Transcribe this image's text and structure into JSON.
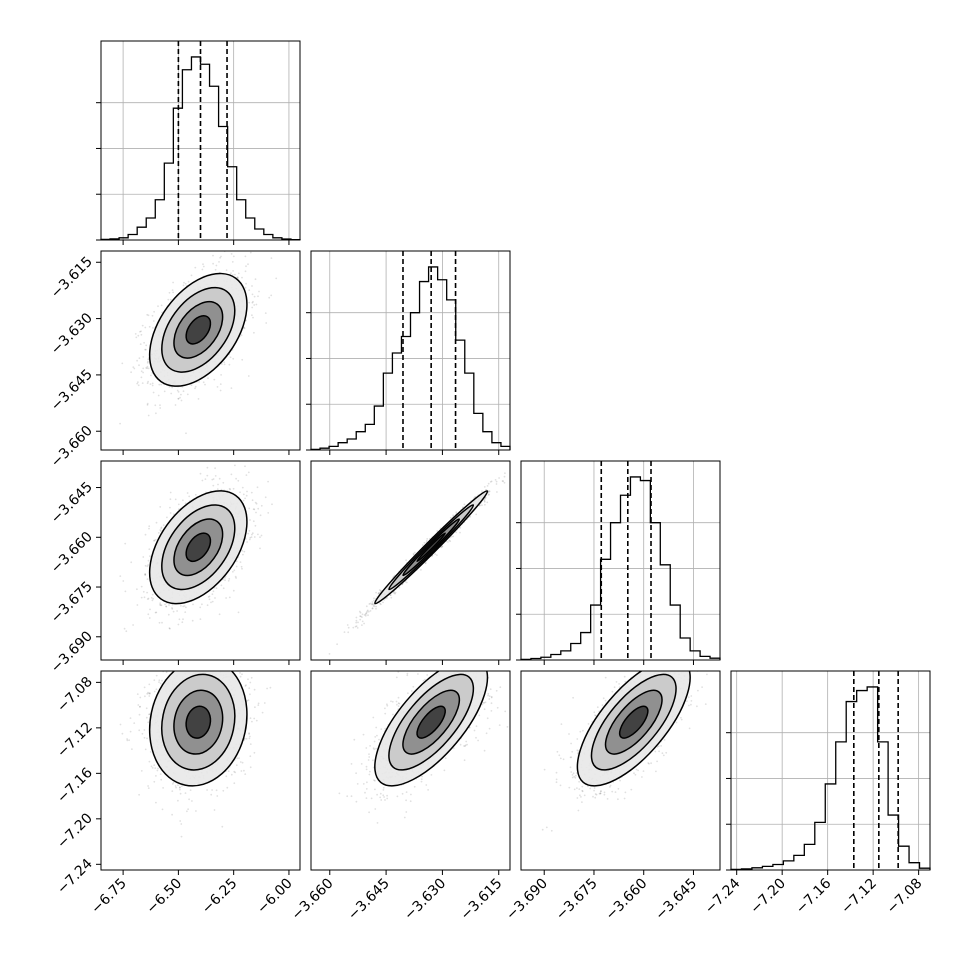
{
  "chart_data": {
    "type": "corner",
    "parameters": [
      {
        "id": "p1",
        "range": [
          -6.85,
          -5.95
        ],
        "ticks": [
          -6.75,
          -6.5,
          -6.25,
          -6.0
        ],
        "tick_labels": [
          "−6.75",
          "−6.50",
          "−6.25",
          "−6.00"
        ],
        "hist_edges_range": [
          -6.85,
          -5.95
        ],
        "hist": [
          0.003,
          0.006,
          0.012,
          0.03,
          0.07,
          0.12,
          0.22,
          0.42,
          0.72,
          0.93,
          1.0,
          0.96,
          0.84,
          0.62,
          0.4,
          0.22,
          0.12,
          0.06,
          0.03,
          0.012,
          0.005,
          0.002
        ],
        "quantiles": [
          -6.5,
          -6.4,
          -6.28
        ]
      },
      {
        "id": "p2",
        "range": [
          -3.665,
          -3.612
        ],
        "ticks": [
          -3.66,
          -3.645,
          -3.63,
          -3.615
        ],
        "tick_labels": [
          "−3.660",
          "−3.645",
          "−3.630",
          "−3.615"
        ],
        "hist_edges_range": [
          -3.665,
          -3.612
        ],
        "hist": [
          0.003,
          0.01,
          0.02,
          0.04,
          0.06,
          0.1,
          0.14,
          0.24,
          0.42,
          0.53,
          0.62,
          0.75,
          0.92,
          1.0,
          0.93,
          0.82,
          0.6,
          0.42,
          0.2,
          0.1,
          0.04,
          0.02
        ],
        "quantiles": [
          -3.6405,
          -3.633,
          -3.6265
        ]
      },
      {
        "id": "p3",
        "range": [
          -3.697,
          -3.637
        ],
        "ticks": [
          -3.69,
          -3.675,
          -3.66,
          -3.645
        ],
        "tick_labels": [
          "−3.690",
          "−3.675",
          "−3.660",
          "−3.645"
        ],
        "hist_edges_range": [
          -3.697,
          -3.637
        ],
        "hist": [
          0.003,
          0.008,
          0.015,
          0.03,
          0.05,
          0.09,
          0.15,
          0.3,
          0.55,
          0.75,
          0.9,
          1.0,
          0.98,
          0.75,
          0.52,
          0.3,
          0.12,
          0.05,
          0.02,
          0.01
        ],
        "quantiles": [
          -3.6728,
          -3.6648,
          -3.6578
        ]
      },
      {
        "id": "p4",
        "range": [
          -7.245,
          -7.07
        ],
        "ticks": [
          -7.24,
          -7.2,
          -7.16,
          -7.12,
          -7.08
        ],
        "tick_labels": [
          "−7.24",
          "−7.20",
          "−7.16",
          "−7.12",
          "−7.08"
        ],
        "hist_edges_range": [
          -7.245,
          -7.07
        ],
        "hist": [
          0.003,
          0.006,
          0.012,
          0.02,
          0.03,
          0.05,
          0.08,
          0.14,
          0.26,
          0.47,
          0.7,
          0.92,
          0.98,
          1.0,
          0.7,
          0.3,
          0.13,
          0.04,
          0.01
        ],
        "quantiles": [
          -7.137,
          -7.115,
          -7.098
        ]
      }
    ],
    "pairs": [
      {
        "row": 1,
        "col": 0,
        "mean": [
          -6.41,
          -3.633
        ],
        "sd": [
          0.11,
          0.0075
        ],
        "corr": 0.45
      },
      {
        "row": 2,
        "col": 0,
        "mean": [
          -6.41,
          -3.663
        ],
        "sd": [
          0.11,
          0.0085
        ],
        "corr": 0.45
      },
      {
        "row": 2,
        "col": 1,
        "mean": [
          -3.633,
          -3.663
        ],
        "sd": [
          0.0075,
          0.0085
        ],
        "corr": 0.99
      },
      {
        "row": 3,
        "col": 0,
        "mean": [
          -6.41,
          -7.115
        ],
        "sd": [
          0.11,
          0.028
        ],
        "corr": 0.12
      },
      {
        "row": 3,
        "col": 1,
        "mean": [
          -3.633,
          -7.115
        ],
        "sd": [
          0.0075,
          0.028
        ],
        "corr": 0.7
      },
      {
        "row": 3,
        "col": 2,
        "mean": [
          -3.663,
          -7.115
        ],
        "sd": [
          0.0085,
          0.028
        ],
        "corr": 0.7
      }
    ],
    "grid": true
  }
}
